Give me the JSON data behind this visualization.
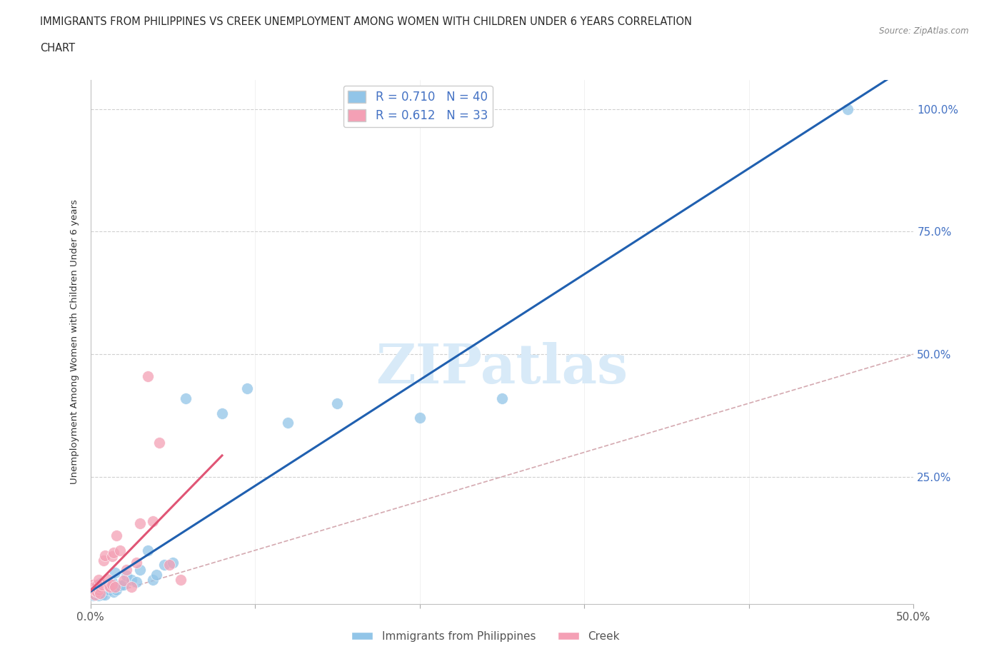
{
  "title_line1": "IMMIGRANTS FROM PHILIPPINES VS CREEK UNEMPLOYMENT AMONG WOMEN WITH CHILDREN UNDER 6 YEARS CORRELATION",
  "title_line2": "CHART",
  "source": "Source: ZipAtlas.com",
  "ylabel": "Unemployment Among Women with Children Under 6 years",
  "xlim": [
    0.0,
    0.5
  ],
  "ylim": [
    -0.01,
    1.06
  ],
  "blue_R": 0.71,
  "blue_N": 40,
  "pink_R": 0.612,
  "pink_N": 33,
  "blue_color": "#92C5E8",
  "pink_color": "#F4A0B5",
  "blue_line_color": "#2060B0",
  "pink_line_color": "#E05575",
  "ref_line_color": "#D0A0A8",
  "watermark": "ZIPatlas",
  "watermark_color": "#D8EAF8",
  "blue_scatter_x": [
    0.001,
    0.002,
    0.002,
    0.003,
    0.003,
    0.004,
    0.005,
    0.005,
    0.006,
    0.006,
    0.007,
    0.007,
    0.008,
    0.009,
    0.01,
    0.011,
    0.012,
    0.013,
    0.014,
    0.015,
    0.016,
    0.018,
    0.02,
    0.022,
    0.025,
    0.028,
    0.03,
    0.035,
    0.038,
    0.04,
    0.045,
    0.05,
    0.058,
    0.08,
    0.095,
    0.12,
    0.15,
    0.2,
    0.25,
    0.46
  ],
  "blue_scatter_y": [
    0.02,
    0.008,
    0.015,
    0.01,
    0.025,
    0.012,
    0.008,
    0.03,
    0.015,
    0.032,
    0.01,
    0.018,
    0.025,
    0.01,
    0.03,
    0.02,
    0.025,
    0.035,
    0.015,
    0.055,
    0.02,
    0.028,
    0.03,
    0.048,
    0.04,
    0.035,
    0.06,
    0.1,
    0.04,
    0.05,
    0.07,
    0.075,
    0.41,
    0.38,
    0.43,
    0.36,
    0.4,
    0.37,
    0.41,
    1.0
  ],
  "pink_scatter_x": [
    0.001,
    0.001,
    0.002,
    0.003,
    0.003,
    0.004,
    0.004,
    0.005,
    0.005,
    0.006,
    0.006,
    0.007,
    0.008,
    0.009,
    0.01,
    0.011,
    0.012,
    0.013,
    0.013,
    0.014,
    0.015,
    0.016,
    0.018,
    0.02,
    0.022,
    0.025,
    0.028,
    0.03,
    0.035,
    0.038,
    0.042,
    0.048,
    0.055
  ],
  "pink_scatter_y": [
    0.02,
    0.03,
    0.025,
    0.01,
    0.018,
    0.03,
    0.015,
    0.02,
    0.04,
    0.025,
    0.012,
    0.03,
    0.08,
    0.09,
    0.042,
    0.028,
    0.025,
    0.088,
    0.03,
    0.095,
    0.025,
    0.13,
    0.1,
    0.038,
    0.06,
    0.025,
    0.075,
    0.155,
    0.455,
    0.16,
    0.32,
    0.07,
    0.04
  ]
}
